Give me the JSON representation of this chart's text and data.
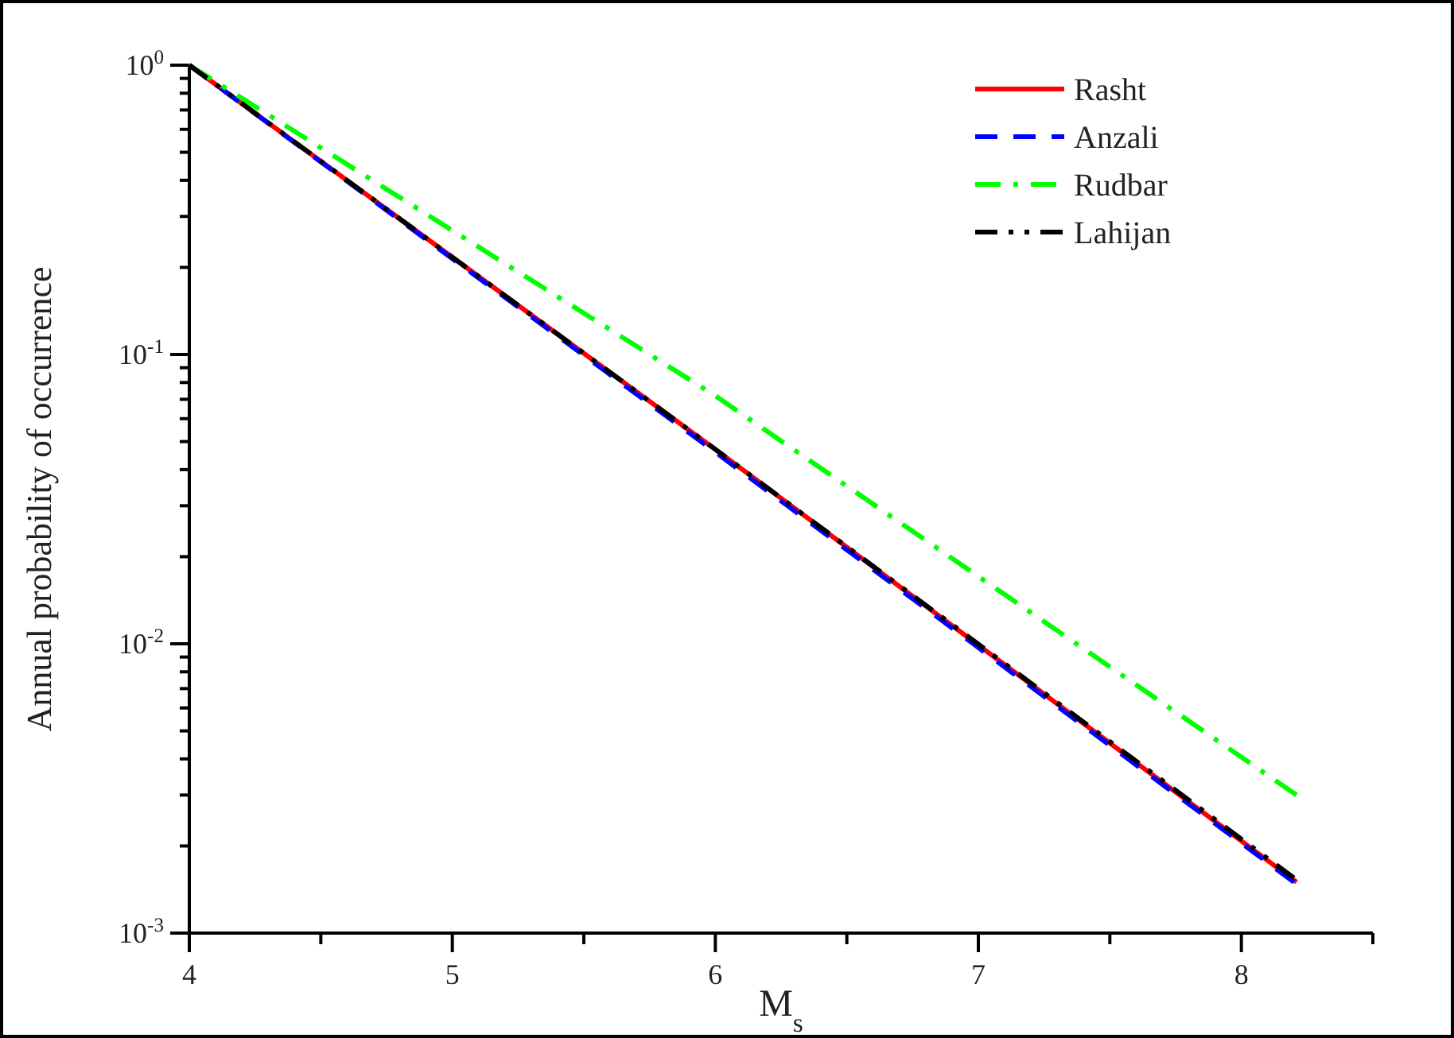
{
  "chart_data": {
    "type": "line",
    "xlabel": "M$_{s}$",
    "ylabel": "Annual probability of occurrence",
    "log": "y",
    "legend": "top right",
    "grid": false,
    "marker": "none",
    "xlim": [
      4,
      8.5
    ],
    "xticks": [
      4,
      {
        "value": 4.5,
        "label": null
      },
      5,
      {
        "value": 5.5,
        "label": null
      },
      6,
      {
        "value": 6.5,
        "label": null
      },
      7,
      {
        "value": 7.5,
        "label": null
      },
      8,
      {
        "value": 8.5,
        "label": null
      }
    ],
    "ylim": [
      0.001,
      1
    ],
    "yticks": [
      {
        "value": 0.001,
        "label": "10$^{-3}$"
      },
      {
        "value": 0.002,
        "label": null
      },
      {
        "value": 0.003,
        "label": null
      },
      {
        "value": 0.004,
        "label": null
      },
      {
        "value": 0.005,
        "label": null
      },
      {
        "value": 0.006,
        "label": null
      },
      {
        "value": 0.007,
        "label": null
      },
      {
        "value": 0.008,
        "label": null
      },
      {
        "value": 0.009,
        "label": null
      },
      {
        "value": 0.01,
        "label": "10$^{-2}$"
      },
      {
        "value": 0.02,
        "label": null
      },
      {
        "value": 0.03,
        "label": null
      },
      {
        "value": 0.04,
        "label": null
      },
      {
        "value": 0.05,
        "label": null
      },
      {
        "value": 0.06,
        "label": null
      },
      {
        "value": 0.07,
        "label": null
      },
      {
        "value": 0.08,
        "label": null
      },
      {
        "value": 0.09,
        "label": null
      },
      {
        "value": 0.1,
        "label": "10$^{-1}$"
      },
      {
        "value": 0.2,
        "label": null
      },
      {
        "value": 0.3,
        "label": null
      },
      {
        "value": 0.4,
        "label": null
      },
      {
        "value": 0.5,
        "label": null
      },
      {
        "value": 0.6,
        "label": null
      },
      {
        "value": 0.7,
        "label": null
      },
      {
        "value": 0.8,
        "label": null
      },
      {
        "value": 0.9,
        "label": null
      },
      {
        "value": 1,
        "label": "10$^{0}$"
      }
    ],
    "series": [
      {
        "name": "Rasht",
        "color": "#ff0000",
        "line_style": "solid",
        "x": [
          4,
          6,
          8.21
        ],
        "values": [
          1,
          0.047,
          0.0015
        ]
      },
      {
        "name": "Anzali",
        "color": "#0000ff",
        "line_style": "dashed",
        "x": [
          4,
          6,
          8.2
        ],
        "values": [
          1,
          0.046,
          0.0015
        ]
      },
      {
        "name": "Rudbar",
        "color": "#00ff00",
        "line_style": "dashdot",
        "x": [
          4,
          6,
          8.21
        ],
        "values": [
          1,
          0.072,
          0.003
        ]
      },
      {
        "name": "Lahijan",
        "color": "#000000",
        "line_style": "dashdotdot",
        "x": [
          4,
          6,
          8.2
        ],
        "values": [
          1,
          0.047,
          0.00155
        ]
      }
    ]
  }
}
